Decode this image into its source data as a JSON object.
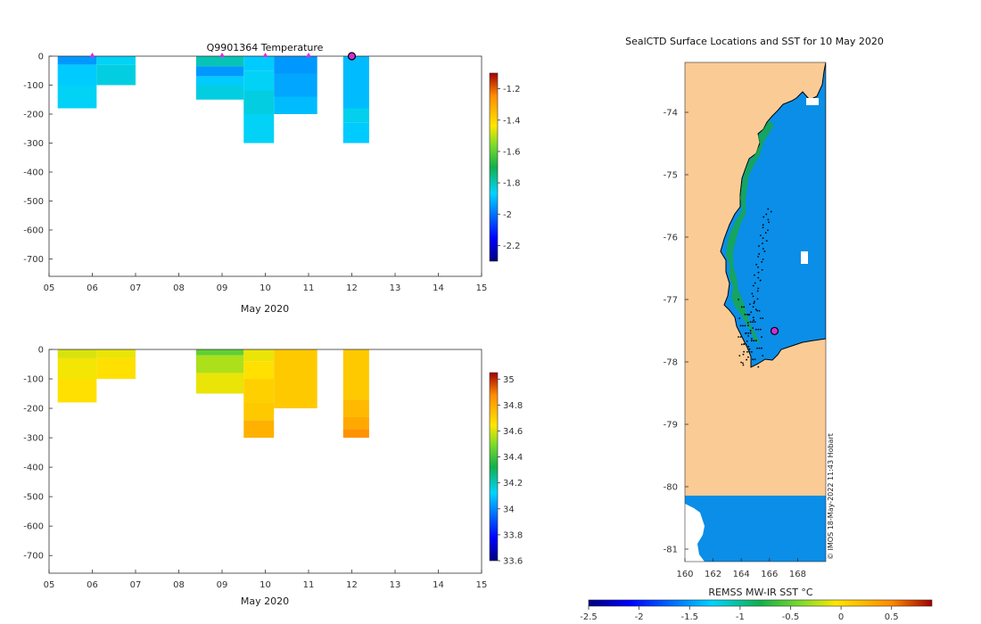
{
  "chart_data": [
    {
      "id": "temperature",
      "type": "heatmap",
      "title": "Q9901364  Temperature",
      "xlabel": "May 2020",
      "ylabel": "",
      "x_tick_labels": [
        "05",
        "06",
        "07",
        "08",
        "09",
        "10",
        "11",
        "12",
        "13",
        "14",
        "15"
      ],
      "xlim": [
        5,
        15
      ],
      "ylim": [
        -760,
        0
      ],
      "y_ticks": [
        0,
        -100,
        -200,
        -300,
        -400,
        -500,
        -600,
        -700
      ],
      "colorbar": {
        "min": -2.3,
        "max": -1.1,
        "ticks": [
          -2.2,
          -2,
          -1.8,
          -1.6,
          -1.4,
          -1.2
        ]
      },
      "profiles": [
        {
          "x0": 5.2,
          "x1": 6.1,
          "bottom": -180,
          "layers": [
            [
              0,
              -30,
              -1.95
            ],
            [
              -30,
              -100,
              -1.88
            ],
            [
              -100,
              -180,
              -1.86
            ]
          ]
        },
        {
          "x0": 6.1,
          "x1": 7.0,
          "bottom": -100,
          "layers": [
            [
              0,
              -30,
              -1.86
            ],
            [
              -30,
              -100,
              -1.84
            ]
          ]
        },
        {
          "x0": 8.4,
          "x1": 9.5,
          "bottom": -150,
          "layers": [
            [
              0,
              -35,
              -1.8
            ],
            [
              -35,
              -70,
              -1.95
            ],
            [
              -70,
              -100,
              -1.88
            ],
            [
              -100,
              -150,
              -1.84
            ]
          ]
        },
        {
          "x0": 9.5,
          "x1": 10.2,
          "bottom": -300,
          "layers": [
            [
              0,
              -50,
              -1.88
            ],
            [
              -50,
              -120,
              -1.86
            ],
            [
              -120,
              -200,
              -1.84
            ],
            [
              -200,
              -300,
              -1.86
            ]
          ]
        },
        {
          "x0": 10.2,
          "x1": 11.2,
          "bottom": -200,
          "layers": [
            [
              0,
              -60,
              -1.95
            ],
            [
              -60,
              -140,
              -1.93
            ],
            [
              -140,
              -200,
              -1.9
            ]
          ]
        },
        {
          "x0": 11.8,
          "x1": 12.4,
          "bottom": -300,
          "layers": [
            [
              0,
              -180,
              -1.9
            ],
            [
              -180,
              -230,
              -1.85
            ],
            [
              -230,
              -300,
              -1.88
            ]
          ]
        }
      ],
      "markers": [
        6,
        9,
        10,
        11
      ]
    },
    {
      "id": "salinity",
      "type": "heatmap",
      "title": "",
      "xlabel": "May 2020",
      "ylabel": "",
      "x_tick_labels": [
        "05",
        "06",
        "07",
        "08",
        "09",
        "10",
        "11",
        "12",
        "13",
        "14",
        "15"
      ],
      "xlim": [
        5,
        15
      ],
      "ylim": [
        -760,
        0
      ],
      "y_ticks": [
        0,
        -100,
        -200,
        -300,
        -400,
        -500,
        -600,
        -700
      ],
      "colorbar": {
        "min": 33.6,
        "max": 35.05,
        "ticks": [
          33.6,
          33.8,
          34,
          34.2,
          34.4,
          34.6,
          34.8,
          35
        ]
      },
      "profiles": [
        {
          "x0": 5.2,
          "x1": 6.1,
          "bottom": -180,
          "layers": [
            [
              0,
              -30,
              34.6
            ],
            [
              -30,
              -100,
              34.63
            ],
            [
              -100,
              -180,
              34.66
            ]
          ]
        },
        {
          "x0": 6.1,
          "x1": 7.0,
          "bottom": -100,
          "layers": [
            [
              0,
              -30,
              34.62
            ],
            [
              -30,
              -100,
              34.66
            ]
          ]
        },
        {
          "x0": 8.4,
          "x1": 9.5,
          "bottom": -150,
          "layers": [
            [
              0,
              -20,
              34.45
            ],
            [
              -20,
              -80,
              34.55
            ],
            [
              -80,
              -150,
              34.62
            ]
          ]
        },
        {
          "x0": 9.5,
          "x1": 10.2,
          "bottom": -300,
          "layers": [
            [
              0,
              -40,
              34.62
            ],
            [
              -40,
              -100,
              34.66
            ],
            [
              -100,
              -180,
              34.7
            ],
            [
              -180,
              -240,
              34.72
            ],
            [
              -240,
              -300,
              34.78
            ]
          ]
        },
        {
          "x0": 10.2,
          "x1": 11.2,
          "bottom": -200,
          "layers": [
            [
              0,
              -200,
              34.72
            ]
          ]
        },
        {
          "x0": 11.8,
          "x1": 12.4,
          "bottom": -300,
          "layers": [
            [
              0,
              -170,
              34.72
            ],
            [
              -170,
              -230,
              34.76
            ],
            [
              -230,
              -270,
              34.8
            ],
            [
              -270,
              -300,
              34.86
            ]
          ]
        }
      ],
      "markers": []
    },
    {
      "id": "map",
      "type": "heatmap",
      "title": "SealCTD Surface Locations and SST for 10 May 2020",
      "xlabel": "",
      "ylabel": "",
      "x_ticks": [
        160,
        162,
        164,
        166,
        168
      ],
      "y_ticks": [
        -74,
        -75,
        -76,
        -77,
        -78,
        -79,
        -80,
        -81
      ],
      "xlim": [
        160,
        170
      ],
      "ylim": [
        -81.2,
        -73.2
      ],
      "colorbar": {
        "label": "REMSS MW-IR SST °C",
        "min": -2.5,
        "max": 0.9,
        "ticks": [
          -2.5,
          -2,
          -1.5,
          -1,
          -0.5,
          0,
          0.5
        ]
      },
      "current_position": [
        166.5,
        -77.35
      ],
      "credit": "© IMOS 18-May-2022 11:43 Hobart"
    }
  ]
}
